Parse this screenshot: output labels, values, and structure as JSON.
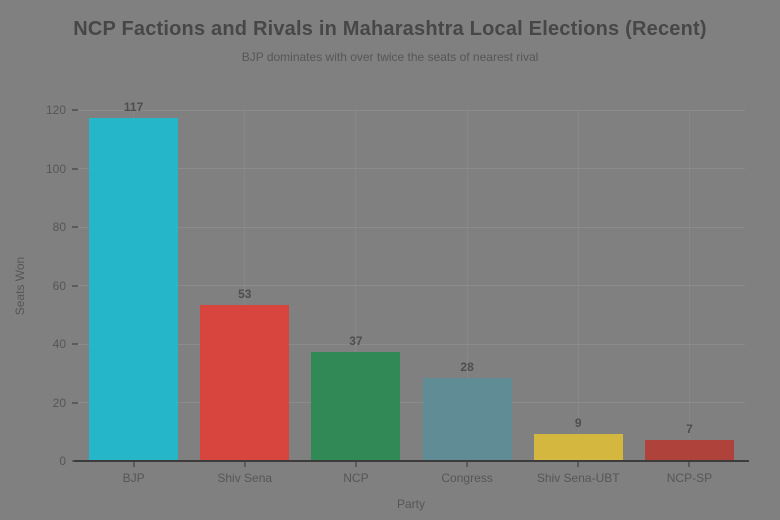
{
  "background_color": "#808080",
  "text_color": "#565656",
  "axis_color": "#3c3c3c",
  "chart_data": {
    "type": "bar",
    "title": "NCP Factions and Rivals in Maharashtra Local Elections (Recent)",
    "subtitle": "BJP dominates with over twice the seats of nearest rival",
    "xlabel": "Party",
    "ylabel": "Seats Won",
    "categories": [
      "BJP",
      "Shiv Sena",
      "NCP",
      "Congress",
      "Shiv Sena-UBT",
      "NCP-SP"
    ],
    "values": [
      117,
      53,
      37,
      28,
      9,
      7
    ],
    "bar_colors": [
      "#25b7c9",
      "#d8453e",
      "#318a55",
      "#608d95",
      "#d3b73f",
      "#b0423c"
    ],
    "ylim": [
      0,
      120
    ],
    "yticks": [
      0,
      20,
      40,
      60,
      80,
      100,
      120
    ],
    "grid": true,
    "legend": false,
    "value_labels": true
  }
}
